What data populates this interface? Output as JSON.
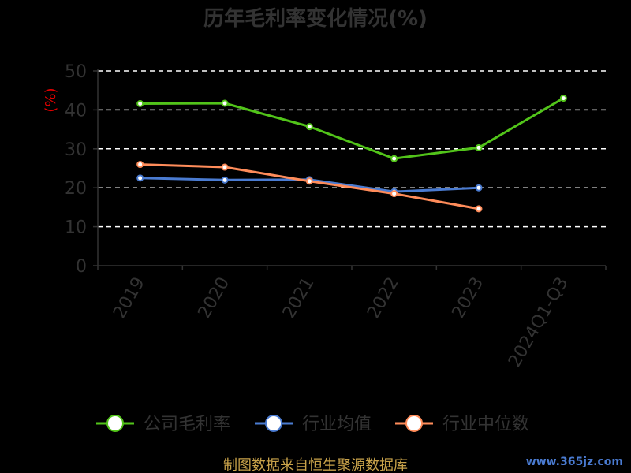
{
  "chart_data": {
    "type": "line",
    "title": "历年毛利率变化情况(%)",
    "ylabel": "(%)",
    "xlabel": "",
    "categories": [
      "2019",
      "2020",
      "2021",
      "2022",
      "2023",
      "2024Q1-Q3"
    ],
    "ylim": [
      0,
      50
    ],
    "yticks": [
      "0",
      "10",
      "20",
      "30",
      "40",
      "50"
    ],
    "grid": true,
    "legend_position": "bottom",
    "series": [
      {
        "name": "公司毛利率",
        "color": "#52c41a",
        "values": [
          41.6,
          41.7,
          35.7,
          27.5,
          30.3,
          43.0
        ]
      },
      {
        "name": "行业均值",
        "color": "#4a7bd1",
        "values": [
          22.5,
          22.0,
          22.1,
          19.0,
          20.0,
          null
        ]
      },
      {
        "name": "行业中位数",
        "color": "#ff8c5a",
        "values": [
          26.0,
          25.3,
          21.7,
          18.5,
          14.6,
          null
        ]
      }
    ]
  },
  "source_text": "制图数据来自恒生聚源数据库",
  "watermark": "www.365jz.com"
}
